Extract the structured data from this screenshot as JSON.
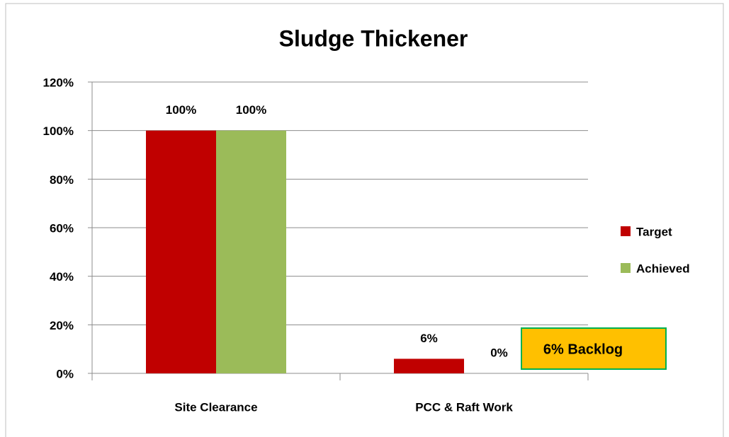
{
  "chart_data": {
    "type": "bar",
    "title": "Sludge Thickener",
    "categories": [
      "Site Clearance",
      "PCC & Raft Work"
    ],
    "series": [
      {
        "name": "Target",
        "color": "#c00000",
        "values": [
          100,
          6
        ],
        "value_labels": [
          "100%",
          "6%"
        ]
      },
      {
        "name": "Achieved",
        "color": "#9bbb59",
        "values": [
          100,
          0
        ],
        "value_labels": [
          "100%",
          "0%"
        ]
      }
    ],
    "ylim": [
      0,
      120
    ],
    "yticks": [
      {
        "value": 0,
        "label": "0%"
      },
      {
        "value": 20,
        "label": "20%"
      },
      {
        "value": 40,
        "label": "40%"
      },
      {
        "value": 60,
        "label": "60%"
      },
      {
        "value": 80,
        "label": "80%"
      },
      {
        "value": 100,
        "label": "100%"
      },
      {
        "value": 120,
        "label": "120%"
      }
    ],
    "grid": true,
    "legend": "right",
    "annotation": "6% Backlog"
  }
}
